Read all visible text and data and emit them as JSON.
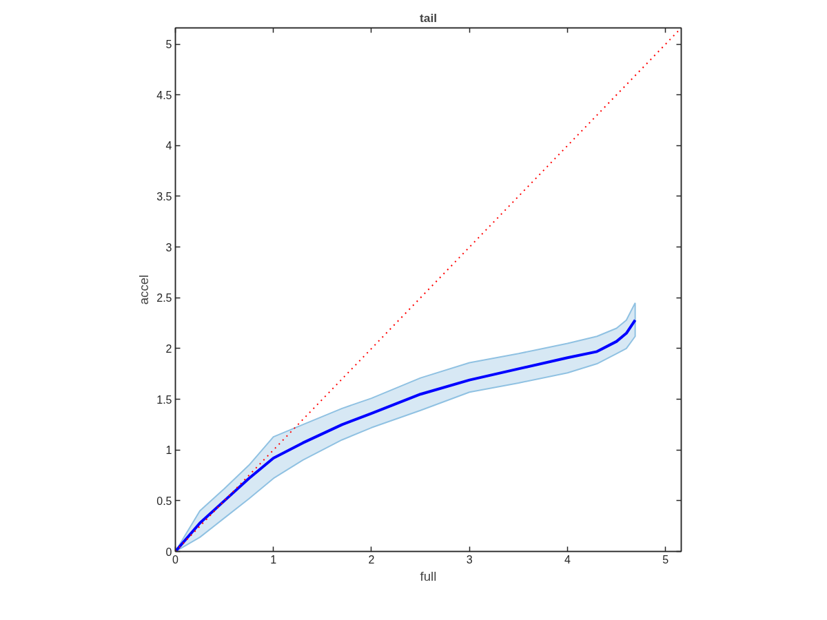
{
  "chart_data": {
    "type": "line",
    "title": "tail",
    "xlabel": "full",
    "ylabel": "accel",
    "xlim": [
      0,
      5.16
    ],
    "ylim": [
      0,
      5.16
    ],
    "xticks": [
      0,
      1,
      2,
      3,
      4,
      5
    ],
    "yticks": [
      0,
      {
        "value": 0.5,
        "label": "0.5"
      },
      1,
      {
        "value": 1.5,
        "label": "1.5"
      },
      2,
      {
        "value": 2.5,
        "label": "2.5"
      },
      3,
      {
        "value": 3.5,
        "label": "3.5"
      },
      4,
      {
        "value": 4.5,
        "label": "4.5"
      },
      5
    ],
    "grid": false,
    "series": [
      {
        "color": "#0000ff",
        "line_style": "solid",
        "x": [
          0,
          0.25,
          0.5,
          0.75,
          1.0,
          1.3,
          1.7,
          2.0,
          2.5,
          3.0,
          3.5,
          4.0,
          4.3,
          4.5,
          4.6,
          4.69
        ],
        "values": [
          0,
          0.28,
          0.5,
          0.72,
          0.92,
          1.07,
          1.25,
          1.36,
          1.55,
          1.69,
          1.8,
          1.91,
          1.97,
          2.07,
          2.15,
          2.28
        ],
        "upper": [
          0,
          0.4,
          0.62,
          0.85,
          1.13,
          1.25,
          1.41,
          1.51,
          1.71,
          1.86,
          1.95,
          2.05,
          2.12,
          2.2,
          2.28,
          2.45
        ],
        "lower": [
          0,
          0.14,
          0.33,
          0.52,
          0.72,
          0.9,
          1.1,
          1.22,
          1.39,
          1.57,
          1.66,
          1.76,
          1.85,
          1.95,
          2.0,
          2.12
        ]
      },
      {
        "color": "#ff0000",
        "line_style": "dotted",
        "x": [
          0,
          5.16
        ],
        "values": [
          0,
          5.16
        ]
      }
    ]
  }
}
